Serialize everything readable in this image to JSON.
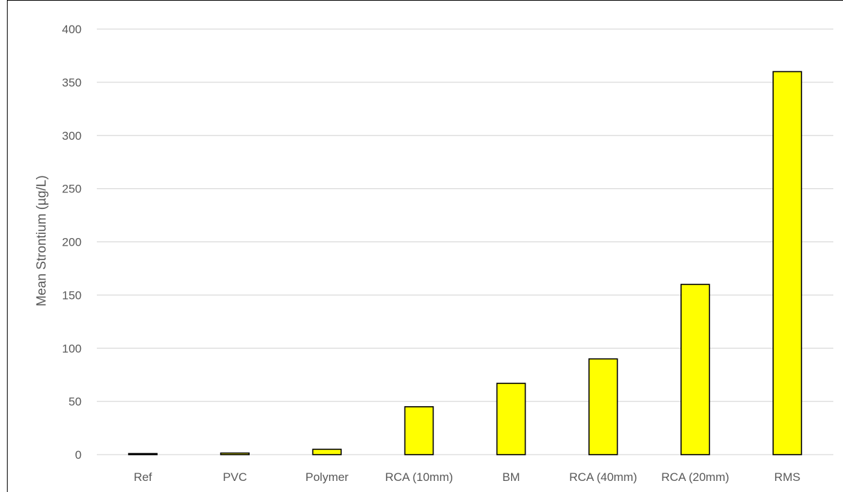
{
  "chart_data": {
    "type": "bar",
    "title": "",
    "xlabel": "",
    "ylabel": "Mean Strontium (µg/L)",
    "ylim": [
      0,
      400
    ],
    "yticks": [
      0,
      50,
      100,
      150,
      200,
      250,
      300,
      350,
      400
    ],
    "grid": true,
    "legend": "none",
    "categories": [
      "Ref",
      "PVC",
      "Polymer",
      "RCA (10mm)",
      "BM",
      "RCA (40mm)",
      "RCA (20mm)",
      "RMS"
    ],
    "values": [
      1,
      1.5,
      5,
      45,
      67,
      90,
      160,
      360
    ],
    "colors": {
      "bar_fill": "#FFFF00",
      "bar_stroke": "#000000",
      "grid": "#D9D9D9",
      "text": "#595959"
    }
  }
}
